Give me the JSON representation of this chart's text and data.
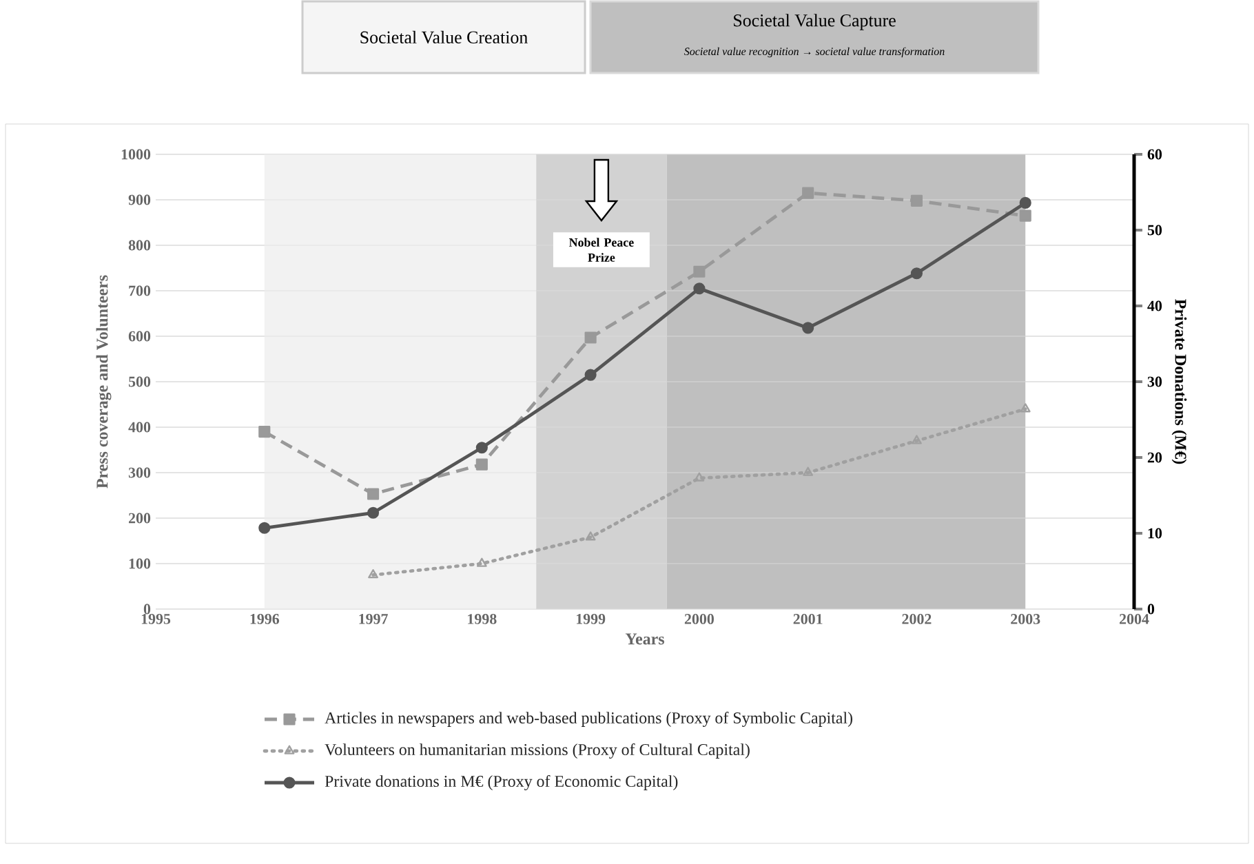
{
  "chart_data": {
    "type": "line",
    "xlabel": "Years",
    "ylabel": "Press coverage and Volunteers",
    "y2label": "Private Donations (M€)",
    "x": [
      1996,
      1997,
      1998,
      1999,
      2000,
      2001,
      2002,
      2003
    ],
    "series": [
      {
        "name": "Articles in newspapers and web-based publications (Proxy of Symbolic Capital)",
        "color": "#999999",
        "marker": "square",
        "line_style": "dashed",
        "values": [
          390,
          253,
          318,
          597,
          742,
          915,
          898,
          865
        ]
      },
      {
        "name": "Volunteers on humanitarian missions (Proxy of Cultural Capital)",
        "color": "#a0a0a0",
        "marker": "triangle",
        "line_style": "dotted",
        "values": [
          null,
          75,
          100,
          158,
          288,
          300,
          370,
          440
        ]
      },
      {
        "name": "Private donations in M€ (Proxy of Economic Capital)",
        "color": "#555555",
        "marker": "circle",
        "line_style": "solid",
        "axis": "y2",
        "values": [
          10.7,
          12.7,
          21.3,
          30.9,
          42.3,
          37.1,
          44.3,
          53.6
        ]
      }
    ],
    "xlim": [
      1995,
      2004
    ],
    "xticks": [
      1995,
      1996,
      1997,
      1998,
      1999,
      2000,
      2001,
      2002,
      2003,
      2004
    ],
    "ylim": [
      0,
      1000
    ],
    "yticks": [
      0,
      100,
      200,
      300,
      400,
      500,
      600,
      700,
      800,
      900,
      1000
    ],
    "y2lim": [
      0,
      60
    ],
    "y2ticks": [
      0,
      10,
      20,
      30,
      40,
      50,
      60
    ],
    "bands": [
      {
        "axis": "x",
        "from": 1996,
        "to": 1998.5,
        "color": "#f2f2f2"
      },
      {
        "axis": "x",
        "from": 1998.5,
        "to": 1999.7,
        "color": "#d2d2d2"
      },
      {
        "axis": "x",
        "from": 1999.7,
        "to": 2003,
        "color": "#bfbfbf"
      }
    ],
    "annotations": [
      "Societal Value Creation",
      "Societal Value Capture",
      "*Societal value recognition → societal value transformation*",
      "Nobel Peace Prize"
    ],
    "grid": "y",
    "legend": "bottom"
  }
}
